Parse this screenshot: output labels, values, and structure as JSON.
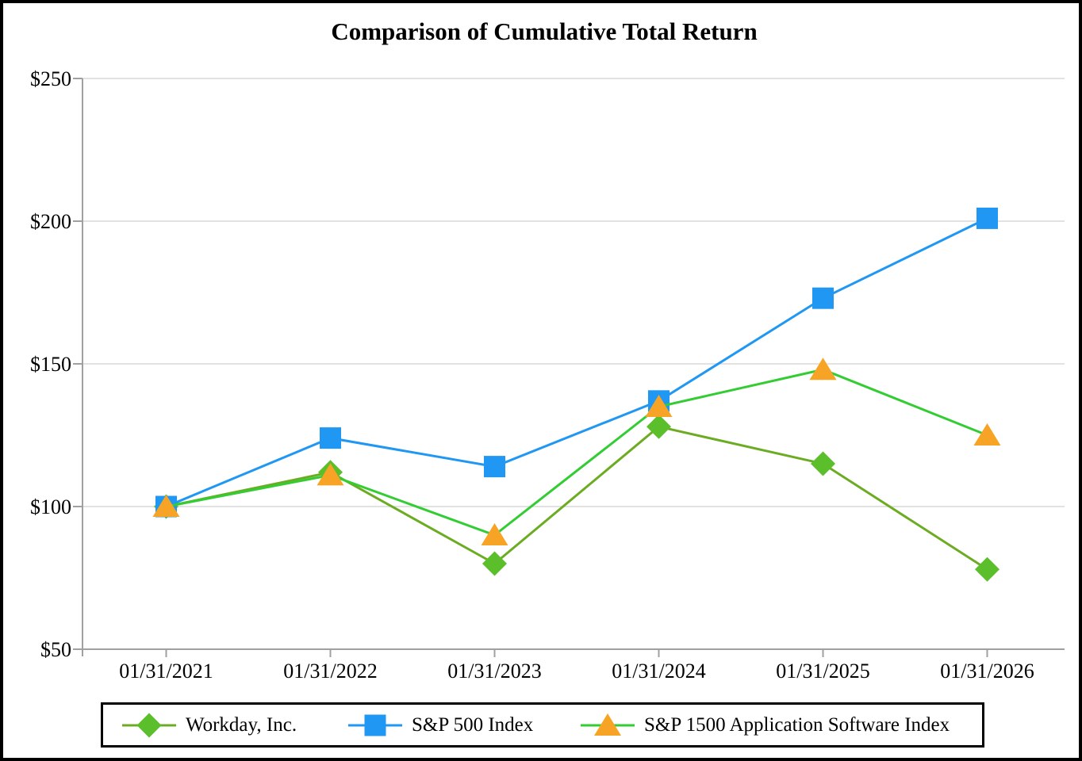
{
  "title": "Comparison of Cumulative Total Return",
  "chart_data": {
    "type": "line",
    "x": [
      "01/31/2021",
      "01/31/2022",
      "01/31/2023",
      "01/31/2024",
      "01/31/2025",
      "01/31/2026"
    ],
    "y_tick_labels": [
      "$50",
      "$100",
      "$150",
      "$200",
      "$250"
    ],
    "ylim": [
      50,
      250
    ],
    "y_tick_step": 50,
    "grid": "horizontal-only",
    "legend_position": "bottom",
    "title": "Comparison of Cumulative Total Return",
    "xlabel": "",
    "ylabel": "",
    "series": [
      {
        "name": "Workday, Inc.",
        "marker": "diamond",
        "line_color": "#6CAC23",
        "marker_color": "#5BBE2B",
        "values": [
          100,
          112,
          80,
          128,
          115,
          78
        ]
      },
      {
        "name": "S&P 500 Index",
        "marker": "square",
        "line_color": "#2097F3",
        "marker_color": "#2097F3",
        "values": [
          100,
          124,
          114,
          137,
          173,
          201
        ]
      },
      {
        "name": "S&P 1500 Application Software Index",
        "marker": "triangle",
        "line_color": "#33CC33",
        "marker_color": "#F7A426",
        "values": [
          100,
          111,
          90,
          135,
          148,
          125
        ]
      }
    ],
    "colors": {
      "axis": "#A0A0A0",
      "gridline": "#D9D9D9",
      "text": "#000000",
      "background": "#FFFFFF",
      "border": "#000000"
    }
  }
}
